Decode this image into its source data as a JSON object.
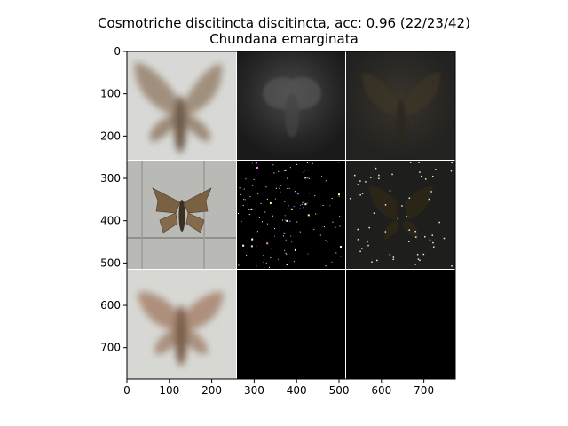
{
  "figure": {
    "title_line1": "Cosmotriche discitincta discitincta, acc: 0.96 (22/23/42)",
    "title_line2": "Chundana emarginata"
  },
  "axes": {
    "x_ticks": [
      0,
      100,
      200,
      300,
      400,
      500,
      600,
      700
    ],
    "y_ticks": [
      0,
      100,
      200,
      300,
      400,
      500,
      600,
      700
    ],
    "xlim": [
      0,
      774
    ],
    "ylim": [
      774,
      0
    ]
  },
  "grid": {
    "rows": 3,
    "cols": 3,
    "panels": [
      {
        "row": 0,
        "col": 0,
        "name": "panel-moth-average-top",
        "content": "blurred-moth"
      },
      {
        "row": 0,
        "col": 1,
        "name": "panel-saliency-dark-1",
        "content": "dark-noise"
      },
      {
        "row": 0,
        "col": 2,
        "name": "panel-saliency-dark-2",
        "content": "dark-moth"
      },
      {
        "row": 1,
        "col": 0,
        "name": "panel-moth-specimen",
        "content": "specimen"
      },
      {
        "row": 1,
        "col": 1,
        "name": "panel-speckle-black",
        "content": "speckles"
      },
      {
        "row": 1,
        "col": 2,
        "name": "panel-masked-moth",
        "content": "masked-moth"
      },
      {
        "row": 2,
        "col": 0,
        "name": "panel-moth-average-bottom",
        "content": "blurred-moth"
      },
      {
        "row": 2,
        "col": 1,
        "name": "panel-black-1",
        "content": "black"
      },
      {
        "row": 2,
        "col": 2,
        "name": "panel-black-2",
        "content": "black"
      }
    ]
  }
}
